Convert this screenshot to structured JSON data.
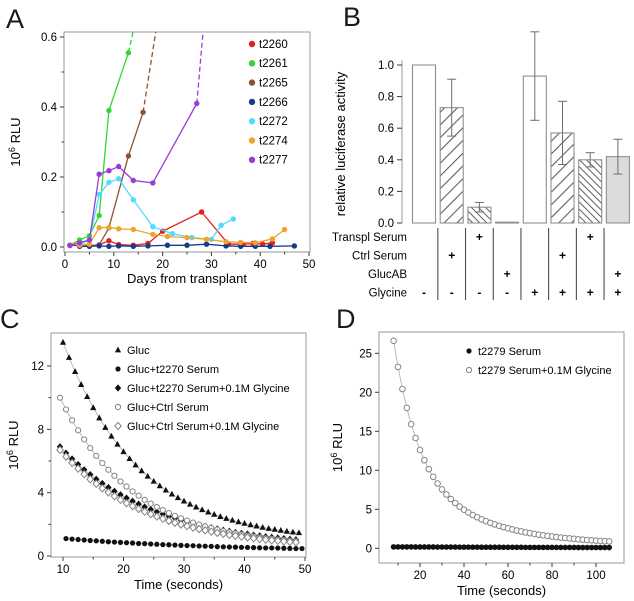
{
  "figure": {
    "panels": [
      {
        "label": "A"
      },
      {
        "label": "B"
      },
      {
        "label": "C"
      },
      {
        "label": "D"
      }
    ]
  },
  "chart_data": [
    {
      "panel": "A",
      "type": "line",
      "xlabel": "Days from transplant",
      "ylabel": "10⁶ RLU",
      "xlim": [
        0,
        51
      ],
      "ylim": [
        0,
        0.62
      ],
      "xticks": [
        0,
        10,
        20,
        30,
        40,
        50
      ],
      "xminor": [
        5,
        15,
        25,
        35,
        45
      ],
      "yticks": [
        0.0,
        0.2,
        0.4,
        0.6
      ],
      "yminor": [
        0.1,
        0.3,
        0.5
      ],
      "grid": false,
      "legend_position": "top-right-inside",
      "series": [
        {
          "name": "t2260",
          "color": "#e2201c",
          "points": [
            [
              1,
              0.005
            ],
            [
              3,
              0.004
            ],
            [
              5,
              0.004
            ],
            [
              7,
              0.006
            ],
            [
              9,
              0.018
            ],
            [
              11,
              0.007
            ],
            [
              14,
              0.005
            ],
            [
              17,
              0.01
            ],
            [
              20,
              0.045
            ],
            [
              28,
              0.1
            ],
            [
              33.5,
              0.008
            ],
            [
              36.5,
              0.008
            ],
            [
              38.5,
              0.01
            ],
            [
              40.5,
              0.008
            ],
            [
              42.5,
              0.012
            ]
          ]
        },
        {
          "name": "t2261",
          "color": "#35d52f",
          "points": [
            [
              1,
              0.005
            ],
            [
              3,
              0.02
            ],
            [
              5,
              0.032
            ],
            [
              7,
              0.09
            ],
            [
              9,
              0.39
            ],
            [
              13,
              0.555
            ]
          ],
          "dash": [
            [
              13,
              0.555
            ],
            [
              14.5,
              0.65
            ]
          ]
        },
        {
          "name": "t2265",
          "color": "#8a5433",
          "points": [
            [
              3,
              0.003
            ],
            [
              5,
              0.004
            ],
            [
              7,
              0.006
            ],
            [
              9,
              0.055
            ],
            [
              13,
              0.26
            ],
            [
              16,
              0.385
            ]
          ],
          "dash": [
            [
              16,
              0.385
            ],
            [
              19,
              0.65
            ]
          ]
        },
        {
          "name": "t2266",
          "color": "#173a8e",
          "points": [
            [
              3,
              0.002
            ],
            [
              5,
              0.002
            ],
            [
              7,
              0.003
            ],
            [
              9,
              0.002
            ],
            [
              11,
              0.003
            ],
            [
              14,
              0.002
            ],
            [
              17,
              0.003
            ],
            [
              21,
              0.005
            ],
            [
              25,
              0.005
            ],
            [
              29,
              0.008
            ],
            [
              33,
              0.003
            ],
            [
              36,
              0.002
            ],
            [
              39,
              0.002
            ],
            [
              42,
              0.002
            ],
            [
              47,
              0.003
            ]
          ]
        },
        {
          "name": "t2272",
          "color": "#4fdcff",
          "points": [
            [
              3,
              0.006
            ],
            [
              5,
              0.02
            ],
            [
              7,
              0.15
            ],
            [
              9,
              0.185
            ],
            [
              11,
              0.195
            ],
            [
              14,
              0.135
            ],
            [
              18,
              0.058
            ],
            [
              22,
              0.038
            ],
            [
              26,
              0.027
            ],
            [
              30,
              0.022
            ],
            [
              32,
              0.062
            ],
            [
              34.5,
              0.08
            ]
          ]
        },
        {
          "name": "t2274",
          "color": "#f0a330",
          "points": [
            [
              3,
              0.005
            ],
            [
              5,
              0.008
            ],
            [
              7,
              0.055
            ],
            [
              9,
              0.056
            ],
            [
              11,
              0.052
            ],
            [
              14,
              0.05
            ],
            [
              18,
              0.036
            ],
            [
              21,
              0.03
            ],
            [
              25,
              0.027
            ],
            [
              29,
              0.022
            ],
            [
              33,
              0.015
            ],
            [
              36,
              0.013
            ],
            [
              39,
              0.012
            ],
            [
              42.5,
              0.023
            ],
            [
              45,
              0.05
            ]
          ]
        },
        {
          "name": "t2277",
          "color": "#9a3bd8",
          "points": [
            [
              1,
              0.004
            ],
            [
              3,
              0.012
            ],
            [
              5,
              0.02
            ],
            [
              7,
              0.208
            ],
            [
              9,
              0.218
            ],
            [
              11,
              0.23
            ],
            [
              14,
              0.19
            ],
            [
              18,
              0.183
            ],
            [
              27,
              0.41
            ]
          ],
          "dash": [
            [
              27,
              0.41
            ],
            [
              28.5,
              0.65
            ]
          ]
        }
      ]
    },
    {
      "panel": "B",
      "type": "bar",
      "ylabel": "relative luciferase activity",
      "ylim": [
        0,
        1.25
      ],
      "yticks": [
        0.0,
        0.2,
        0.4,
        0.6,
        0.8,
        1.0
      ],
      "grid": false,
      "bars": [
        {
          "value": 1.0,
          "error": null,
          "fill": "white"
        },
        {
          "value": 0.73,
          "error": 0.18,
          "fill": "hatch-fwd"
        },
        {
          "value": 0.1,
          "error": 0.03,
          "fill": "hatch-back"
        },
        {
          "value": 0.005,
          "error": null,
          "fill": "white"
        },
        {
          "value": 0.93,
          "error": 0.28,
          "fill": "white"
        },
        {
          "value": 0.57,
          "error": 0.2,
          "fill": "hatch-fwd"
        },
        {
          "value": 0.4,
          "error": 0.045,
          "fill": "hatch-back"
        },
        {
          "value": 0.42,
          "error": 0.11,
          "fill": "gray"
        }
      ],
      "condition_rows": [
        {
          "label": "Transpl Serum",
          "signs": [
            "",
            "",
            "+",
            "",
            "",
            "",
            "+",
            ""
          ]
        },
        {
          "label": "Ctrl Serum",
          "signs": [
            "",
            "+",
            "",
            "",
            "",
            "+",
            "",
            ""
          ]
        },
        {
          "label": "GlucAB",
          "signs": [
            "",
            "",
            "",
            "+",
            "",
            "",
            "",
            "+"
          ]
        },
        {
          "label": "Glycine",
          "signs": [
            "-",
            "-",
            "-",
            "-",
            "+",
            "+",
            "+",
            "+"
          ]
        }
      ]
    },
    {
      "panel": "C",
      "type": "scatter",
      "xlabel": "Time (seconds)",
      "ylabel": "10⁶ RLU",
      "xlim": [
        8,
        51
      ],
      "ylim": [
        0,
        14.2
      ],
      "xticks": [
        10,
        20,
        30,
        40,
        50
      ],
      "xminor": [
        15,
        25,
        35,
        45
      ],
      "yticks": [
        0,
        4,
        8,
        12
      ],
      "yminor": [
        2,
        6,
        10
      ],
      "grid": false,
      "legend_position": "top-inside",
      "series": [
        {
          "name": "Gluc",
          "marker": "triangle-filled",
          "t_start": 10,
          "t_step": 1,
          "values": [
            13.5,
            12.54,
            11.65,
            10.83,
            10.07,
            9.37,
            8.72,
            8.12,
            7.57,
            7.06,
            6.59,
            6.15,
            5.75,
            5.38,
            5.04,
            4.72,
            4.43,
            4.16,
            3.91,
            3.68,
            3.47,
            3.27,
            3.09,
            2.92,
            2.77,
            2.63,
            2.49,
            2.37,
            2.26,
            2.16,
            2.06,
            1.97,
            1.89,
            1.81,
            1.74,
            1.68,
            1.62,
            1.56,
            1.51,
            1.47
          ]
        },
        {
          "name": "Gluc+t2270 Serum",
          "marker": "circle-filled",
          "t_start": 10.5,
          "t_step": 1,
          "values": [
            1.1,
            1.07,
            1.04,
            1.01,
            0.98,
            0.96,
            0.93,
            0.9,
            0.88,
            0.86,
            0.84,
            0.82,
            0.79,
            0.78,
            0.76,
            0.74,
            0.72,
            0.71,
            0.69,
            0.67,
            0.66,
            0.65,
            0.63,
            0.62,
            0.61,
            0.59,
            0.58,
            0.57,
            0.56,
            0.55,
            0.54,
            0.53,
            0.52,
            0.51,
            0.51,
            0.5,
            0.49,
            0.48,
            0.47,
            0.47
          ]
        },
        {
          "name": "Gluc+t2270 Serum+0.1M Glycine",
          "marker": "diamond-filled",
          "t_start": 9.5,
          "t_step": 1,
          "values": [
            6.9,
            6.5,
            6.13,
            5.78,
            5.45,
            5.14,
            4.85,
            4.58,
            4.33,
            4.09,
            3.87,
            3.66,
            3.46,
            3.28,
            3.1,
            2.94,
            2.79,
            2.65,
            2.51,
            2.39,
            2.27,
            2.16,
            2.06,
            1.96,
            1.87,
            1.79,
            1.71,
            1.63,
            1.56,
            1.49,
            1.43,
            1.38,
            1.32,
            1.27,
            1.22,
            1.18,
            1.14,
            1.1,
            1.06,
            1.03
          ]
        },
        {
          "name": "Gluc+Ctrl Serum",
          "marker": "circle-open",
          "t_start": 9.5,
          "t_step": 1,
          "values": [
            10.0,
            9.26,
            8.57,
            7.94,
            7.36,
            6.82,
            6.33,
            5.87,
            5.45,
            5.07,
            4.71,
            4.39,
            4.08,
            3.81,
            3.55,
            3.31,
            3.1,
            2.9,
            2.71,
            2.54,
            2.39,
            2.24,
            2.11,
            1.99,
            1.87,
            1.77,
            1.67,
            1.58,
            1.5,
            1.43,
            1.36,
            1.29,
            1.24,
            1.18,
            1.13,
            1.09,
            1.04,
            1.01,
            0.97,
            0.94
          ]
        },
        {
          "name": "Gluc+Ctrl Serum+0.1M Glycine",
          "marker": "diamond-open",
          "t_start": 9.5,
          "t_step": 1,
          "values": [
            6.7,
            6.28,
            5.88,
            5.52,
            5.17,
            4.85,
            4.56,
            4.28,
            4.02,
            3.78,
            3.55,
            3.34,
            3.15,
            2.97,
            2.8,
            2.64,
            2.49,
            2.35,
            2.22,
            2.1,
            1.99,
            1.89,
            1.79,
            1.7,
            1.62,
            1.54,
            1.46,
            1.4,
            1.33,
            1.27,
            1.22,
            1.17,
            1.12,
            1.07,
            1.03,
            0.99,
            0.96,
            0.92,
            0.89,
            0.86
          ]
        }
      ]
    },
    {
      "panel": "D",
      "type": "scatter",
      "xlabel": "Time (seconds)",
      "ylabel": "10⁶ RLU",
      "xlim": [
        5,
        108
      ],
      "ylim": [
        0,
        27.8
      ],
      "xticks": [
        20,
        40,
        60,
        80,
        100
      ],
      "xminor": [
        10,
        30,
        50,
        70,
        90
      ],
      "yticks": [
        0,
        5,
        10,
        15,
        20,
        25
      ],
      "yminor": [],
      "grid": false,
      "legend_position": "top-right-inside",
      "series": [
        {
          "name": "t2279 Serum",
          "marker": "circle-filled",
          "t_start": 8,
          "t_step": 2,
          "values": [
            0.18,
            0.18,
            0.18,
            0.18,
            0.18,
            0.17,
            0.17,
            0.17,
            0.17,
            0.17,
            0.16,
            0.16,
            0.16,
            0.16,
            0.16,
            0.15,
            0.15,
            0.15,
            0.15,
            0.15,
            0.14,
            0.14,
            0.14,
            0.14,
            0.14,
            0.13,
            0.13,
            0.13,
            0.13,
            0.13,
            0.12,
            0.12,
            0.12,
            0.12,
            0.12,
            0.12,
            0.12,
            0.11,
            0.11,
            0.11,
            0.11,
            0.11,
            0.1,
            0.1,
            0.1,
            0.1,
            0.1,
            0.1,
            0.1,
            0.1
          ]
        },
        {
          "name": "t2279 Serum+0.1M Glycine",
          "marker": "circle-open",
          "t_start": 8,
          "t_step": 2,
          "values": [
            26.6,
            23.26,
            20.42,
            17.99,
            15.91,
            14.14,
            12.61,
            11.29,
            10.15,
            9.17,
            8.3,
            7.55,
            6.9,
            6.32,
            5.8,
            5.35,
            4.95,
            4.59,
            4.27,
            3.98,
            3.71,
            3.48,
            3.26,
            3.06,
            2.88,
            2.71,
            2.56,
            2.42,
            2.28,
            2.16,
            2.04,
            1.94,
            1.84,
            1.75,
            1.66,
            1.59,
            1.51,
            1.44,
            1.38,
            1.32,
            1.26,
            1.21,
            1.15,
            1.11,
            1.06,
            1.02,
            0.98,
            0.94,
            0.91,
            0.88
          ]
        }
      ]
    }
  ]
}
